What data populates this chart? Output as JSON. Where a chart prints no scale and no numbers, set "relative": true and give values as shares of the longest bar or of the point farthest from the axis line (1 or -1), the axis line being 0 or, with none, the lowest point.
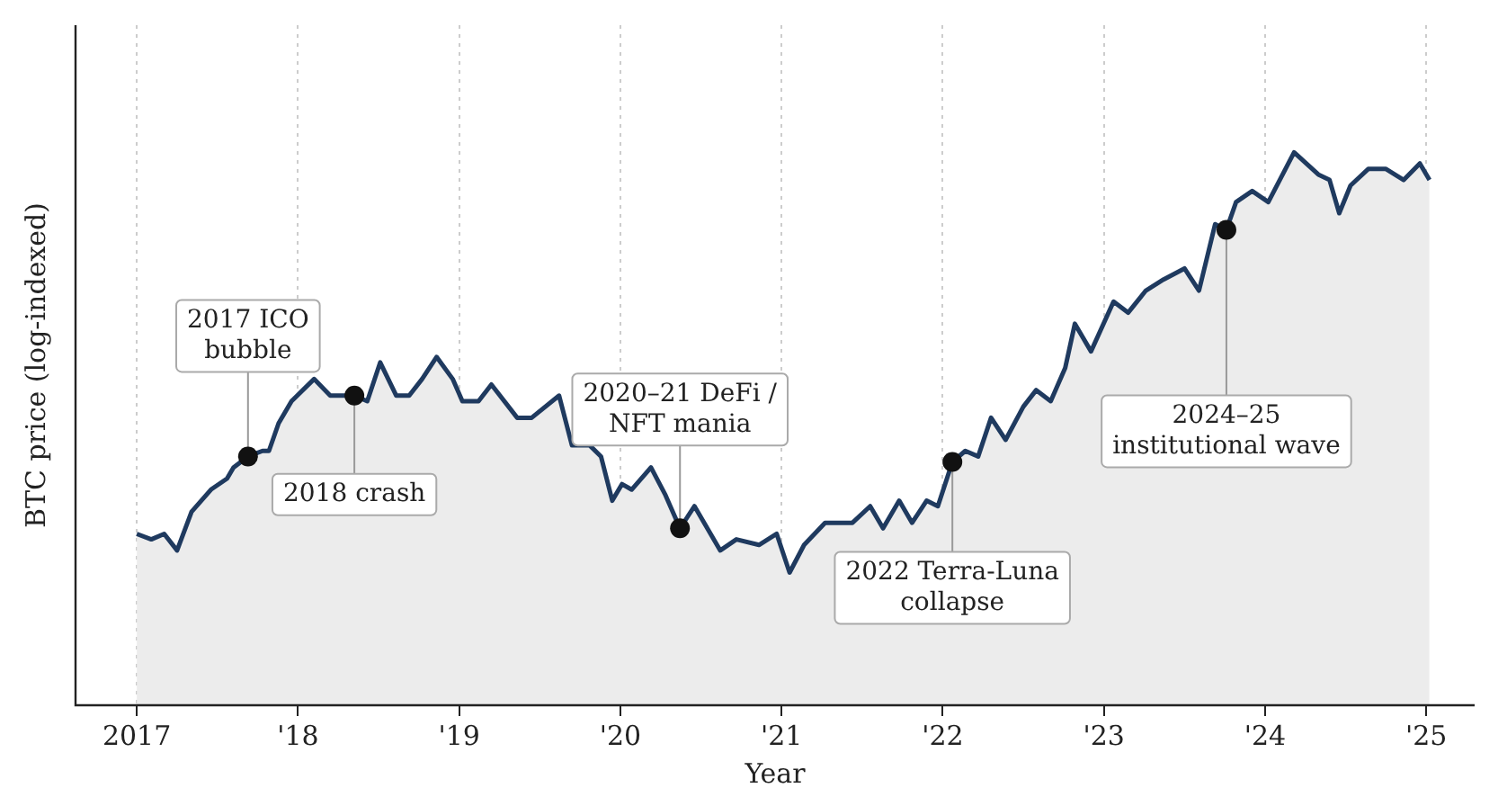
{
  "chart_data": {
    "type": "area",
    "relative": true,
    "xlabel": "Year",
    "ylabel": "BTC price (log-indexed)",
    "color": "#1f3a5f",
    "grid": "x",
    "marker": "none",
    "line_style": "solid",
    "legend": false,
    "xlim": [
      2016.62,
      2025.3
    ],
    "xticks": [
      {
        "value": 2017,
        "label": "2017"
      },
      {
        "value": 2018,
        "label": "'18"
      },
      {
        "value": 2019,
        "label": "'19"
      },
      {
        "value": 2020,
        "label": "'20"
      },
      {
        "value": 2021,
        "label": "'21"
      },
      {
        "value": 2022,
        "label": "'22"
      },
      {
        "value": 2023,
        "label": "'23"
      },
      {
        "value": 2024,
        "label": "'24"
      },
      {
        "value": 2025,
        "label": "'25"
      }
    ],
    "x": [
      2017.0,
      2017.09,
      2017.17,
      2017.25,
      2017.34,
      2017.46,
      2017.56,
      2017.6,
      2017.69,
      2017.78,
      2017.82,
      2017.88,
      2017.96,
      2018.1,
      2018.2,
      2018.35,
      2018.43,
      2018.51,
      2018.61,
      2018.69,
      2018.77,
      2018.86,
      2018.96,
      2019.02,
      2019.12,
      2019.2,
      2019.36,
      2019.45,
      2019.62,
      2019.7,
      2019.81,
      2019.88,
      2019.95,
      2020.01,
      2020.07,
      2020.19,
      2020.28,
      2020.37,
      2020.46,
      2020.62,
      2020.72,
      2020.86,
      2020.97,
      2021.05,
      2021.14,
      2021.27,
      2021.39,
      2021.44,
      2021.55,
      2021.63,
      2021.73,
      2021.81,
      2021.9,
      2021.97,
      2022.06,
      2022.14,
      2022.22,
      2022.3,
      2022.39,
      2022.5,
      2022.58,
      2022.67,
      2022.76,
      2022.82,
      2022.92,
      2023.06,
      2023.15,
      2023.26,
      2023.37,
      2023.5,
      2023.59,
      2023.69,
      2023.76,
      2023.82,
      2023.92,
      2024.02,
      2024.18,
      2024.33,
      2024.4,
      2024.46,
      2024.53,
      2024.64,
      2024.75,
      2024.86,
      2024.96,
      2025.02
    ],
    "values": [
      0.31,
      0.3,
      0.31,
      0.28,
      0.35,
      0.39,
      0.41,
      0.43,
      0.45,
      0.46,
      0.46,
      0.51,
      0.55,
      0.59,
      0.56,
      0.56,
      0.55,
      0.62,
      0.56,
      0.56,
      0.59,
      0.63,
      0.59,
      0.55,
      0.55,
      0.58,
      0.52,
      0.52,
      0.56,
      0.47,
      0.47,
      0.45,
      0.37,
      0.4,
      0.39,
      0.43,
      0.38,
      0.32,
      0.36,
      0.28,
      0.3,
      0.29,
      0.31,
      0.24,
      0.29,
      0.33,
      0.33,
      0.33,
      0.36,
      0.32,
      0.37,
      0.33,
      0.37,
      0.36,
      0.44,
      0.46,
      0.45,
      0.52,
      0.48,
      0.54,
      0.57,
      0.55,
      0.61,
      0.69,
      0.64,
      0.73,
      0.71,
      0.75,
      0.77,
      0.79,
      0.75,
      0.87,
      0.86,
      0.91,
      0.93,
      0.91,
      1.0,
      0.96,
      0.95,
      0.89,
      0.94,
      0.97,
      0.97,
      0.95,
      0.98,
      0.95
    ],
    "annotations": [
      {
        "text": "2017 ICO\nbubble",
        "x": 2017.69,
        "y": 0.45
      },
      {
        "text": "2018 crash",
        "x": 2018.35,
        "y": 0.56
      },
      {
        "text": "2020–21 DeFi /\nNFT mania",
        "x": 2020.37,
        "y": 0.32
      },
      {
        "text": "2022 Terra-Luna\ncollapse",
        "x": 2022.06,
        "y": 0.44
      },
      {
        "text": "2024–25\ninstitutional wave",
        "x": 2023.76,
        "y": 0.86
      }
    ]
  }
}
